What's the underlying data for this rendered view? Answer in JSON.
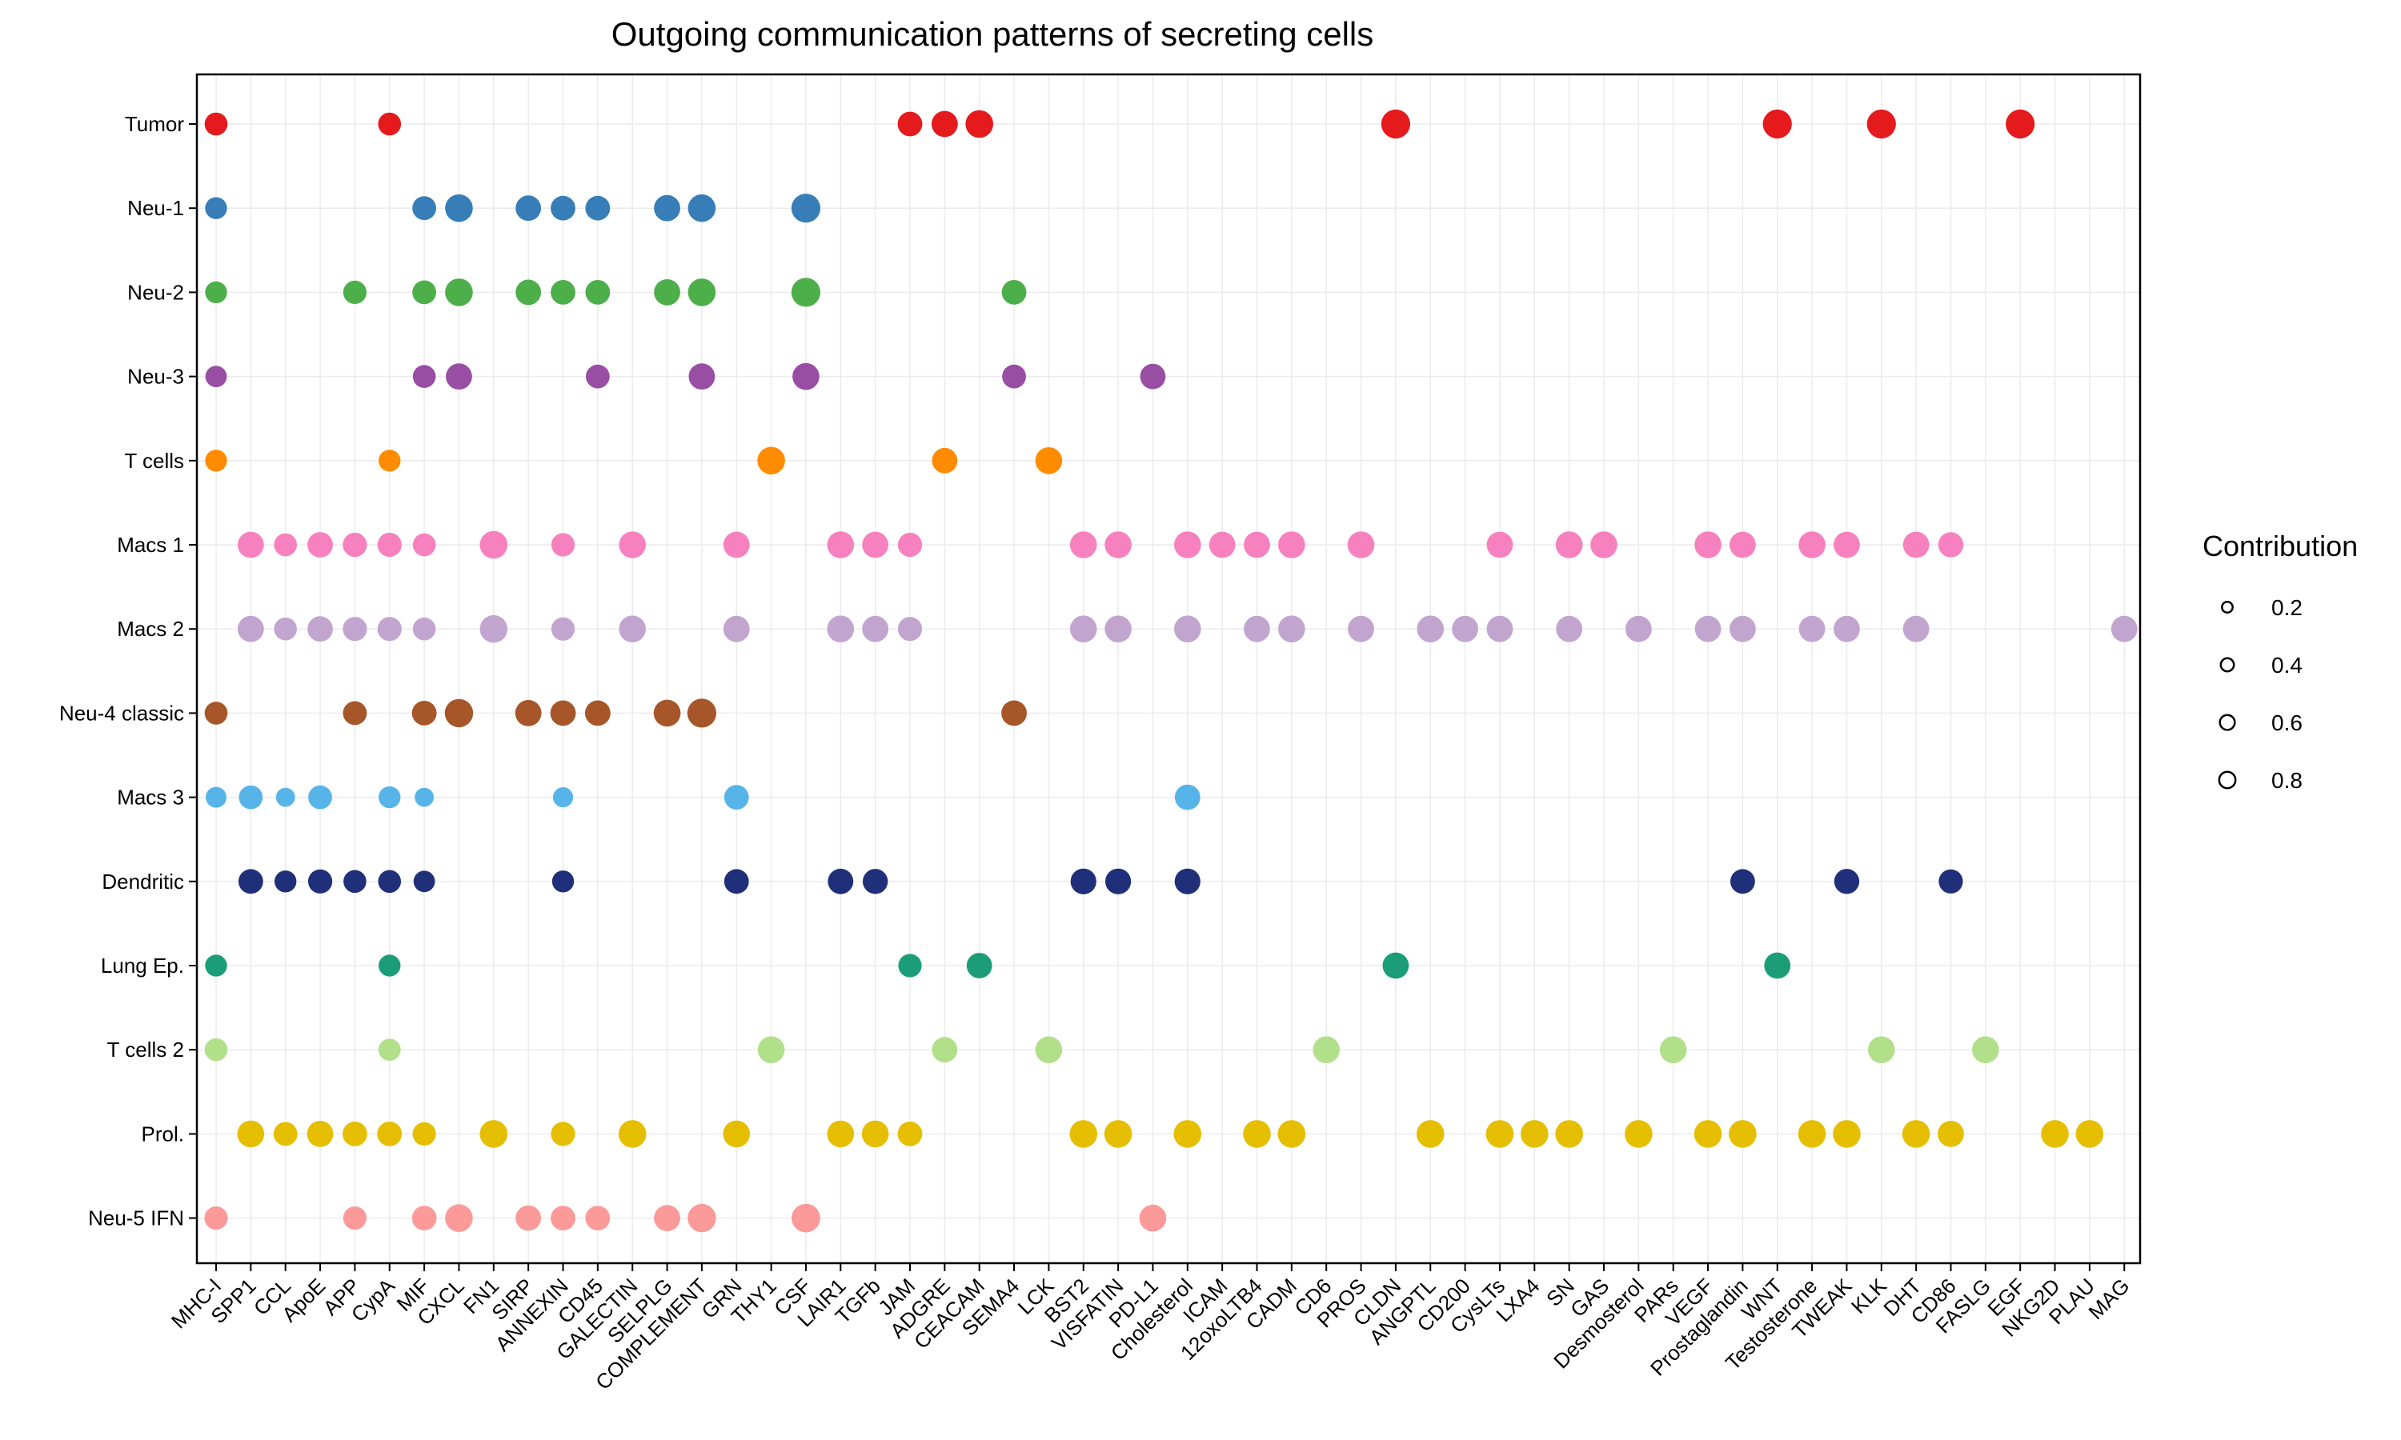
{
  "chart_data": {
    "type": "scatter",
    "title": "Outgoing communication patterns of secreting cells",
    "xlabel": "",
    "ylabel": "",
    "x_categories": [
      "MHC-I",
      "SPP1",
      "CCL",
      "ApoE",
      "APP",
      "CypA",
      "MIF",
      "CXCL",
      "FN1",
      "SIRP",
      "ANNEXIN",
      "CD45",
      "GALECTIN",
      "SELPLG",
      "COMPLEMENT",
      "GRN",
      "THY1",
      "CSF",
      "LAIR1",
      "TGFb",
      "JAM",
      "ADGRE",
      "CEACAM",
      "SEMA4",
      "LCK",
      "BST2",
      "VISFATIN",
      "PD-L1",
      "Cholesterol",
      "ICAM",
      "12oxoLTB4",
      "CADM",
      "CD6",
      "PROS",
      "CLDN",
      "ANGPTL",
      "CD200",
      "CysLTs",
      "LXA4",
      "SN",
      "GAS",
      "Desmosterol",
      "PARs",
      "VEGF",
      "Prostaglandin",
      "WNT",
      "Testosterone",
      "TWEAK",
      "KLK",
      "DHT",
      "CD86",
      "FASLG",
      "EGF",
      "NKG2D",
      "PLAU",
      "MAG"
    ],
    "y_categories": [
      "Tumor",
      "Neu-1",
      "Neu-2",
      "Neu-3",
      "T cells",
      "Macs 1",
      "Macs 2",
      "Neu-4 classic",
      "Macs 3",
      "Dendritic",
      "Lung Ep.",
      "T cells 2",
      "Prol.",
      "Neu-5 IFN"
    ],
    "grid": true,
    "legend": {
      "title": "Contribution",
      "placement": "right",
      "sizes": [
        0.2,
        0.4,
        0.6,
        0.8
      ],
      "labels": [
        "0.2",
        "0.4",
        "0.6",
        "0.8"
      ]
    },
    "series": [
      {
        "name": "Tumor",
        "color": "#E41A1C",
        "points": [
          [
            "MHC-I",
            0.35
          ],
          [
            "CypA",
            0.35
          ],
          [
            "JAM",
            0.45
          ],
          [
            "ADGRE",
            0.55
          ],
          [
            "CEACAM",
            0.65
          ],
          [
            "CLDN",
            0.75
          ],
          [
            "WNT",
            0.75
          ],
          [
            "KLK",
            0.75
          ],
          [
            "EGF",
            0.75
          ]
        ]
      },
      {
        "name": "Neu-1",
        "color": "#377EB8",
        "points": [
          [
            "MHC-I",
            0.3
          ],
          [
            "MIF",
            0.4
          ],
          [
            "CXCL",
            0.65
          ],
          [
            "SIRP",
            0.5
          ],
          [
            "ANNEXIN",
            0.45
          ],
          [
            "CD45",
            0.45
          ],
          [
            "SELPLG",
            0.55
          ],
          [
            "COMPLEMENT",
            0.65
          ],
          [
            "CSF",
            0.75
          ]
        ]
      },
      {
        "name": "Neu-2",
        "color": "#4DAF4A",
        "points": [
          [
            "MHC-I",
            0.3
          ],
          [
            "APP",
            0.38
          ],
          [
            "MIF",
            0.4
          ],
          [
            "CXCL",
            0.65
          ],
          [
            "SIRP",
            0.5
          ],
          [
            "ANNEXIN",
            0.45
          ],
          [
            "CD45",
            0.45
          ],
          [
            "SELPLG",
            0.55
          ],
          [
            "COMPLEMENT",
            0.65
          ],
          [
            "CSF",
            0.75
          ],
          [
            "SEMA4",
            0.45
          ]
        ]
      },
      {
        "name": "Neu-3",
        "color": "#984EA3",
        "points": [
          [
            "MHC-I",
            0.28
          ],
          [
            "MIF",
            0.35
          ],
          [
            "CXCL",
            0.55
          ],
          [
            "CD45",
            0.4
          ],
          [
            "COMPLEMENT",
            0.55
          ],
          [
            "CSF",
            0.6
          ],
          [
            "SEMA4",
            0.4
          ],
          [
            "PD-L1",
            0.5
          ]
        ]
      },
      {
        "name": "T cells",
        "color": "#FF8C00",
        "points": [
          [
            "MHC-I",
            0.3
          ],
          [
            "CypA",
            0.3
          ],
          [
            "THY1",
            0.65
          ],
          [
            "ADGRE",
            0.5
          ],
          [
            "LCK",
            0.6
          ]
        ]
      },
      {
        "name": "Macs 1",
        "color": "#F781BF",
        "points": [
          [
            "SPP1",
            0.55
          ],
          [
            "CCL",
            0.35
          ],
          [
            "ApoE",
            0.5
          ],
          [
            "APP",
            0.42
          ],
          [
            "CypA",
            0.42
          ],
          [
            "MIF",
            0.35
          ],
          [
            "FN1",
            0.65
          ],
          [
            "ANNEXIN",
            0.38
          ],
          [
            "GALECTIN",
            0.6
          ],
          [
            "GRN",
            0.55
          ],
          [
            "LAIR1",
            0.6
          ],
          [
            "TGFb",
            0.55
          ],
          [
            "JAM",
            0.42
          ],
          [
            "BST2",
            0.6
          ],
          [
            "VISFATIN",
            0.6
          ],
          [
            "Cholesterol",
            0.6
          ],
          [
            "ICAM",
            0.55
          ],
          [
            "12oxoLTB4",
            0.55
          ],
          [
            "CADM",
            0.6
          ],
          [
            "PROS",
            0.6
          ],
          [
            "CysLTs",
            0.55
          ],
          [
            "SN",
            0.6
          ],
          [
            "GAS",
            0.6
          ],
          [
            "VEGF",
            0.6
          ],
          [
            "Prostaglandin",
            0.55
          ],
          [
            "Testosterone",
            0.6
          ],
          [
            "TWEAK",
            0.55
          ],
          [
            "DHT",
            0.55
          ],
          [
            "CD86",
            0.48
          ]
        ]
      },
      {
        "name": "Macs 2",
        "color": "#C2A5CF",
        "points": [
          [
            "SPP1",
            0.55
          ],
          [
            "CCL",
            0.35
          ],
          [
            "ApoE",
            0.5
          ],
          [
            "APP",
            0.42
          ],
          [
            "CypA",
            0.42
          ],
          [
            "MIF",
            0.35
          ],
          [
            "FN1",
            0.65
          ],
          [
            "ANNEXIN",
            0.38
          ],
          [
            "GALECTIN",
            0.6
          ],
          [
            "GRN",
            0.55
          ],
          [
            "LAIR1",
            0.6
          ],
          [
            "TGFb",
            0.55
          ],
          [
            "JAM",
            0.42
          ],
          [
            "BST2",
            0.6
          ],
          [
            "VISFATIN",
            0.6
          ],
          [
            "Cholesterol",
            0.6
          ],
          [
            "12oxoLTB4",
            0.55
          ],
          [
            "CADM",
            0.6
          ],
          [
            "PROS",
            0.55
          ],
          [
            "ANGPTL",
            0.6
          ],
          [
            "CD200",
            0.55
          ],
          [
            "CysLTs",
            0.55
          ],
          [
            "SN",
            0.55
          ],
          [
            "Desmosterol",
            0.55
          ],
          [
            "VEGF",
            0.55
          ],
          [
            "Prostaglandin",
            0.55
          ],
          [
            "Testosterone",
            0.55
          ],
          [
            "TWEAK",
            0.55
          ],
          [
            "DHT",
            0.55
          ],
          [
            "MAG",
            0.55
          ]
        ]
      },
      {
        "name": "Neu-4 classic",
        "color": "#A65628",
        "points": [
          [
            "MHC-I",
            0.35
          ],
          [
            "APP",
            0.4
          ],
          [
            "MIF",
            0.45
          ],
          [
            "CXCL",
            0.7
          ],
          [
            "SIRP",
            0.55
          ],
          [
            "ANNEXIN",
            0.5
          ],
          [
            "CD45",
            0.5
          ],
          [
            "SELPLG",
            0.6
          ],
          [
            "COMPLEMENT",
            0.75
          ],
          [
            "SEMA4",
            0.5
          ]
        ]
      },
      {
        "name": "Macs 3",
        "color": "#56B4E9",
        "points": [
          [
            "MHC-I",
            0.25
          ],
          [
            "SPP1",
            0.4
          ],
          [
            "CCL",
            0.18
          ],
          [
            "ApoE",
            0.4
          ],
          [
            "CypA",
            0.3
          ],
          [
            "MIF",
            0.18
          ],
          [
            "ANNEXIN",
            0.22
          ],
          [
            "GRN",
            0.45
          ],
          [
            "Cholesterol",
            0.5
          ]
        ]
      },
      {
        "name": "Dendritic",
        "color": "#1F2F7A",
        "points": [
          [
            "SPP1",
            0.45
          ],
          [
            "CCL",
            0.3
          ],
          [
            "ApoE",
            0.42
          ],
          [
            "APP",
            0.35
          ],
          [
            "CypA",
            0.35
          ],
          [
            "MIF",
            0.28
          ],
          [
            "ANNEXIN",
            0.3
          ],
          [
            "GRN",
            0.45
          ],
          [
            "LAIR1",
            0.5
          ],
          [
            "TGFb",
            0.48
          ],
          [
            "BST2",
            0.52
          ],
          [
            "VISFATIN",
            0.52
          ],
          [
            "Cholesterol",
            0.52
          ],
          [
            "Prostaglandin",
            0.45
          ],
          [
            "TWEAK",
            0.48
          ],
          [
            "CD86",
            0.42
          ]
        ]
      },
      {
        "name": "Lung Ep.",
        "color": "#1B9E77",
        "points": [
          [
            "MHC-I",
            0.3
          ],
          [
            "CypA",
            0.3
          ],
          [
            "JAM",
            0.38
          ],
          [
            "CEACAM",
            0.5
          ],
          [
            "CLDN",
            0.55
          ],
          [
            "WNT",
            0.55
          ]
        ]
      },
      {
        "name": "T cells 2",
        "color": "#B2DF8A",
        "points": [
          [
            "MHC-I",
            0.35
          ],
          [
            "CypA",
            0.32
          ],
          [
            "THY1",
            0.6
          ],
          [
            "ADGRE",
            0.5
          ],
          [
            "LCK",
            0.6
          ],
          [
            "CD6",
            0.6
          ],
          [
            "PARs",
            0.6
          ],
          [
            "KLK",
            0.6
          ],
          [
            "FASLG",
            0.6
          ]
        ]
      },
      {
        "name": "Prol.",
        "color": "#E6BE00",
        "points": [
          [
            "SPP1",
            0.6
          ],
          [
            "CCL",
            0.4
          ],
          [
            "ApoE",
            0.55
          ],
          [
            "APP",
            0.45
          ],
          [
            "CypA",
            0.45
          ],
          [
            "MIF",
            0.38
          ],
          [
            "FN1",
            0.65
          ],
          [
            "ANNEXIN",
            0.42
          ],
          [
            "GALECTIN",
            0.65
          ],
          [
            "GRN",
            0.6
          ],
          [
            "LAIR1",
            0.6
          ],
          [
            "TGFb",
            0.6
          ],
          [
            "JAM",
            0.45
          ],
          [
            "BST2",
            0.65
          ],
          [
            "VISFATIN",
            0.65
          ],
          [
            "Cholesterol",
            0.65
          ],
          [
            "12oxoLTB4",
            0.65
          ],
          [
            "CADM",
            0.65
          ],
          [
            "ANGPTL",
            0.65
          ],
          [
            "CysLTs",
            0.65
          ],
          [
            "LXA4",
            0.65
          ],
          [
            "SN",
            0.65
          ],
          [
            "Desmosterol",
            0.65
          ],
          [
            "VEGF",
            0.65
          ],
          [
            "Prostaglandin",
            0.65
          ],
          [
            "Testosterone",
            0.65
          ],
          [
            "TWEAK",
            0.65
          ],
          [
            "DHT",
            0.65
          ],
          [
            "CD86",
            0.55
          ],
          [
            "NKG2D",
            0.65
          ],
          [
            "PLAU",
            0.65
          ]
        ]
      },
      {
        "name": "Neu-5 IFN",
        "color": "#FB9A99",
        "points": [
          [
            "MHC-I",
            0.38
          ],
          [
            "APP",
            0.38
          ],
          [
            "MIF",
            0.45
          ],
          [
            "CXCL",
            0.65
          ],
          [
            "SIRP",
            0.5
          ],
          [
            "ANNEXIN",
            0.45
          ],
          [
            "CD45",
            0.45
          ],
          [
            "SELPLG",
            0.55
          ],
          [
            "COMPLEMENT",
            0.7
          ],
          [
            "CSF",
            0.72
          ],
          [
            "PD-L1",
            0.6
          ]
        ]
      }
    ]
  }
}
